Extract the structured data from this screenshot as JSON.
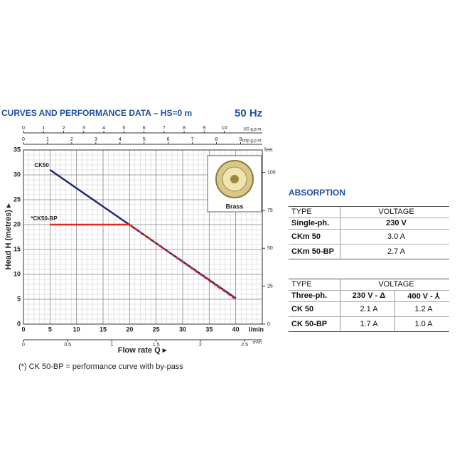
{
  "chart_data": {
    "type": "line",
    "title": "CURVES AND PERFORMANCE DATA  –  HS=0 m",
    "subtitle": "50 Hz",
    "xlabel": "Flow rate Q ▸",
    "ylabel": "Head H (metres) ▸",
    "xunit": "l/min",
    "xlim": [
      0,
      45
    ],
    "xticks": [
      0,
      5,
      10,
      15,
      20,
      25,
      30,
      35,
      40
    ],
    "ylim": [
      0,
      35
    ],
    "yticks": [
      0,
      5,
      10,
      15,
      20,
      25,
      30,
      35
    ],
    "grid": true,
    "xminor": 1,
    "yminor": 1,
    "y2label": "feet",
    "y2lim": [
      0,
      114.8
    ],
    "y2ticks": [
      0,
      25,
      50,
      75,
      100
    ],
    "top_axes": [
      {
        "label": "US g.p.m.",
        "lim": [
          0,
          11.89
        ],
        "ticks": [
          0,
          1,
          2,
          3,
          4,
          5,
          6,
          7,
          8,
          9,
          10
        ]
      },
      {
        "label": "Imp g.p.m.",
        "lim": [
          0,
          9.9
        ],
        "ticks": [
          0,
          1,
          2,
          3,
          4,
          5,
          6,
          7,
          8,
          9
        ]
      }
    ],
    "bottom_axis": {
      "label": "m³/h",
      "lim": [
        0,
        2.7
      ],
      "ticks": [
        0,
        0.5,
        1,
        1.5,
        2,
        2.5
      ]
    },
    "series": [
      {
        "name": "CK50",
        "color": "#1f2a7a",
        "x": [
          5,
          40
        ],
        "values": [
          31,
          5.2
        ]
      },
      {
        "name": "*CK50-BP",
        "color": "#e02a20",
        "x": [
          5,
          20,
          40
        ],
        "values": [
          20,
          20,
          5
        ],
        "dashed_after": 1
      }
    ],
    "image_label": "Brass",
    "note": "(*) CK 50-BP = performance curve with by-pass"
  },
  "absorption": {
    "title": "ABSORPTION",
    "tables": [
      {
        "header": [
          [
            "TYPE",
            "VOLTAGE"
          ],
          [
            "Single-ph.",
            "230 V"
          ]
        ],
        "rows": [
          [
            "CKm 50",
            "3.0 A"
          ],
          [
            "CKm 50-BP",
            "2.7 A"
          ]
        ]
      },
      {
        "header": [
          [
            "TYPE",
            "VOLTAGE"
          ],
          [
            "Three-ph.",
            "230 V - Δ",
            "400 V - ⅄"
          ]
        ],
        "rows": [
          [
            "CK 50",
            "2.1 A",
            "1.2 A"
          ],
          [
            "CK 50-BP",
            "1.7 A",
            "1.0 A"
          ]
        ]
      }
    ]
  }
}
